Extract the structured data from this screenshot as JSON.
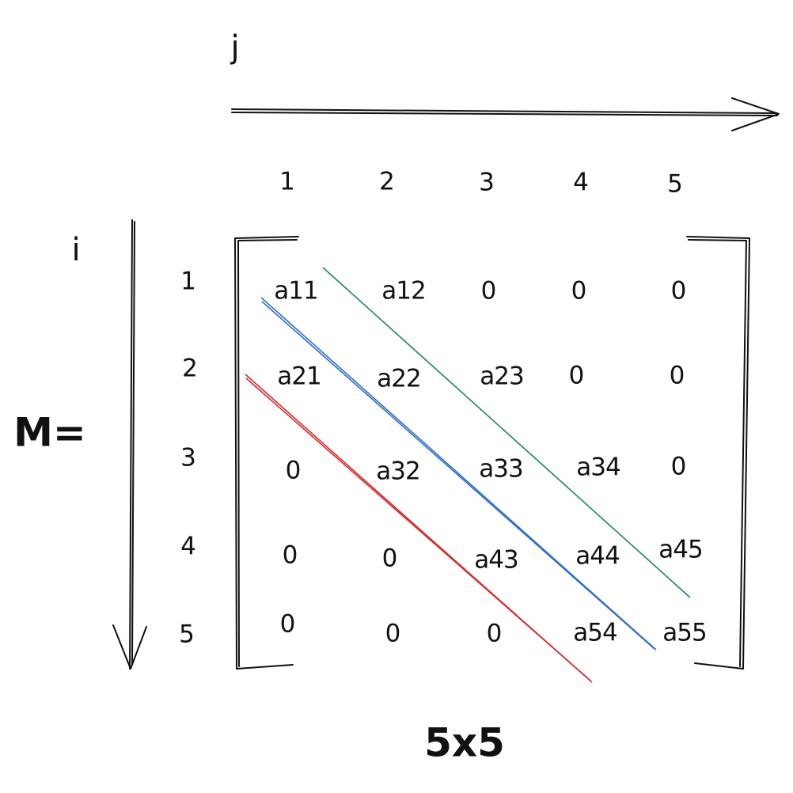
{
  "labels": {
    "j": "j",
    "i": "i",
    "m": "M=",
    "size": "5x5"
  },
  "columns": [
    "1",
    "2",
    "3",
    "4",
    "5"
  ],
  "rows": [
    "1",
    "2",
    "3",
    "4",
    "5"
  ],
  "matrix": [
    [
      "a11",
      "a12",
      "0",
      "0",
      "0"
    ],
    [
      "a21",
      "a22",
      "a23",
      "0",
      "0"
    ],
    [
      "0",
      "a32",
      "a33",
      "a34",
      "0"
    ],
    [
      "0",
      "0",
      "a43",
      "a44",
      "a45"
    ],
    [
      "0",
      "0",
      "0",
      "a54",
      "a55"
    ]
  ],
  "colors": {
    "ink": "#111111",
    "upper_diagonal": "#1a8a55",
    "main_diagonal": "#2f6fc4",
    "lower_diagonal": "#d42a2a"
  }
}
